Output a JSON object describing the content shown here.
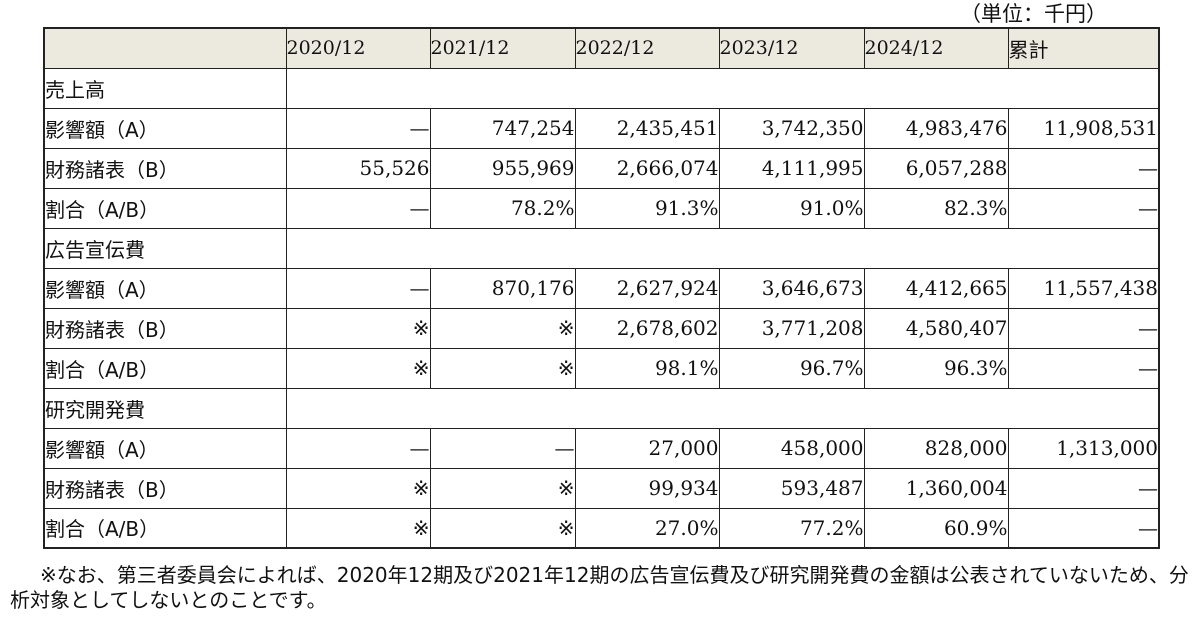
{
  "unit_label": "（単位：千円）",
  "table": {
    "corner": "",
    "columns": [
      "2020/12",
      "2021/12",
      "2022/12",
      "2023/12",
      "2024/12",
      "累計"
    ],
    "sections": [
      {
        "title": "売上高",
        "rows": [
          {
            "label": "影響額（A）",
            "values": [
              "—",
              "747,254",
              "2,435,451",
              "3,742,350",
              "4,983,476",
              "11,908,531"
            ]
          },
          {
            "label": "財務諸表（B）",
            "values": [
              "55,526",
              "955,969",
              "2,666,074",
              "4,111,995",
              "6,057,288",
              "—"
            ]
          },
          {
            "label": "割合（A/B）",
            "values": [
              "—",
              "78.2%",
              "91.3%",
              "91.0%",
              "82.3%",
              "—"
            ]
          }
        ]
      },
      {
        "title": "広告宣伝費",
        "rows": [
          {
            "label": "影響額（A）",
            "values": [
              "—",
              "870,176",
              "2,627,924",
              "3,646,673",
              "4,412,665",
              "11,557,438"
            ]
          },
          {
            "label": "財務諸表（B）",
            "values": [
              "※",
              "※",
              "2,678,602",
              "3,771,208",
              "4,580,407",
              "—"
            ]
          },
          {
            "label": "割合（A/B）",
            "values": [
              "※",
              "※",
              "98.1%",
              "96.7%",
              "96.3%",
              "—"
            ]
          }
        ]
      },
      {
        "title": "研究開発費",
        "rows": [
          {
            "label": "影響額（A）",
            "values": [
              "—",
              "—",
              "27,000",
              "458,000",
              "828,000",
              "1,313,000"
            ]
          },
          {
            "label": "財務諸表（B）",
            "values": [
              "※",
              "※",
              "99,934",
              "593,487",
              "1,360,004",
              "—"
            ]
          },
          {
            "label": "割合（A/B）",
            "values": [
              "※",
              "※",
              "27.0%",
              "77.2%",
              "60.9%",
              "—"
            ]
          }
        ]
      }
    ]
  },
  "footnote": "※なお、第三者委員会によれば、2020年12期及び2021年12期の広告宣伝費及び研究開発費の金額は公表されていないため、分析対象としてしないとのことです。"
}
